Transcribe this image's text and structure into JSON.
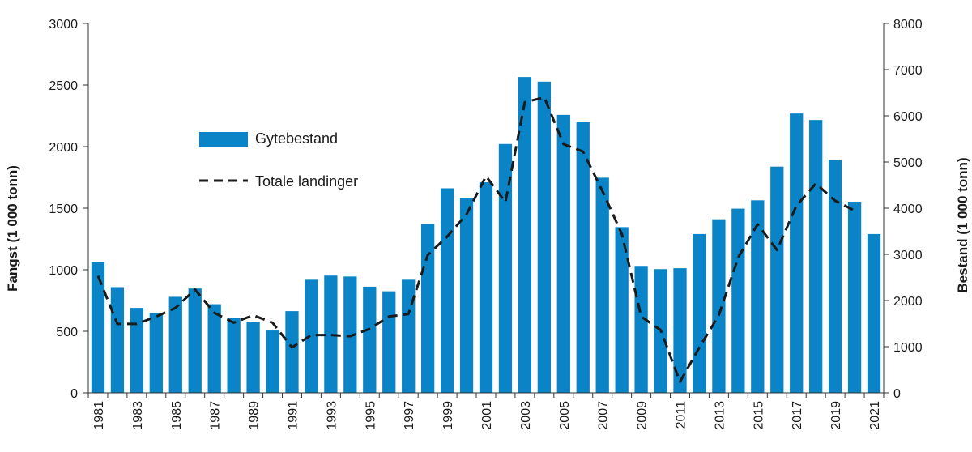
{
  "chart_data": {
    "type": "bar+line",
    "title": "",
    "categories": [
      1981,
      1982,
      1983,
      1984,
      1985,
      1986,
      1987,
      1988,
      1989,
      1990,
      1991,
      1992,
      1993,
      1994,
      1995,
      1996,
      1997,
      1998,
      1999,
      2000,
      2001,
      2002,
      2003,
      2004,
      2005,
      2006,
      2007,
      2008,
      2009,
      2010,
      2011,
      2012,
      2013,
      2014,
      2015,
      2016,
      2017,
      2018,
      2019,
      2020,
      2021
    ],
    "xtick_labels": [
      "1981",
      "1983",
      "1985",
      "1987",
      "1989",
      "1991",
      "1993",
      "1995",
      "1997",
      "1999",
      "2001",
      "2003",
      "2005",
      "2007",
      "2009",
      "2011",
      "2013",
      "2015",
      "2017",
      "2019",
      "2021"
    ],
    "y_left": {
      "label": "Fangst (1 000 tonn)",
      "ylim": [
        0,
        3000
      ],
      "ticks": [
        "0",
        "500",
        "1000",
        "1500",
        "2000",
        "2500",
        "3000"
      ]
    },
    "y_right": {
      "label": "Bestand (1 000 tonn)",
      "ylim": [
        0,
        8000
      ],
      "ticks": [
        "0",
        "1000",
        "2000",
        "3000",
        "4000",
        "5000",
        "6000",
        "7000",
        "8000"
      ]
    },
    "series": [
      {
        "name": "Gytebestand",
        "type": "bar",
        "axis": "right",
        "color": "#0a84c6",
        "values": [
          2830,
          2290,
          1840,
          1730,
          2080,
          2260,
          1920,
          1630,
          1540,
          1350,
          1770,
          2450,
          2540,
          2520,
          2300,
          2200,
          2450,
          3660,
          4430,
          4210,
          4560,
          5390,
          6840,
          6740,
          6020,
          5860,
          4660,
          3590,
          2750,
          2680,
          2700,
          3440,
          3760,
          3990,
          4170,
          4900,
          6050,
          5910,
          5050,
          4140,
          3440
        ]
      },
      {
        "name": "Totale landinger",
        "type": "line",
        "axis": "left",
        "color": "#1a1a1a",
        "style": "dashed",
        "values": [
          950,
          560,
          560,
          620,
          690,
          840,
          650,
          570,
          630,
          570,
          370,
          470,
          470,
          460,
          520,
          620,
          640,
          1120,
          1270,
          1450,
          1760,
          1550,
          2360,
          2400,
          2020,
          1960,
          1640,
          1290,
          620,
          510,
          90,
          370,
          630,
          1100,
          1370,
          1160,
          1520,
          1700,
          1560,
          1480,
          null
        ]
      }
    ],
    "legend": {
      "position": "upper-left"
    }
  }
}
